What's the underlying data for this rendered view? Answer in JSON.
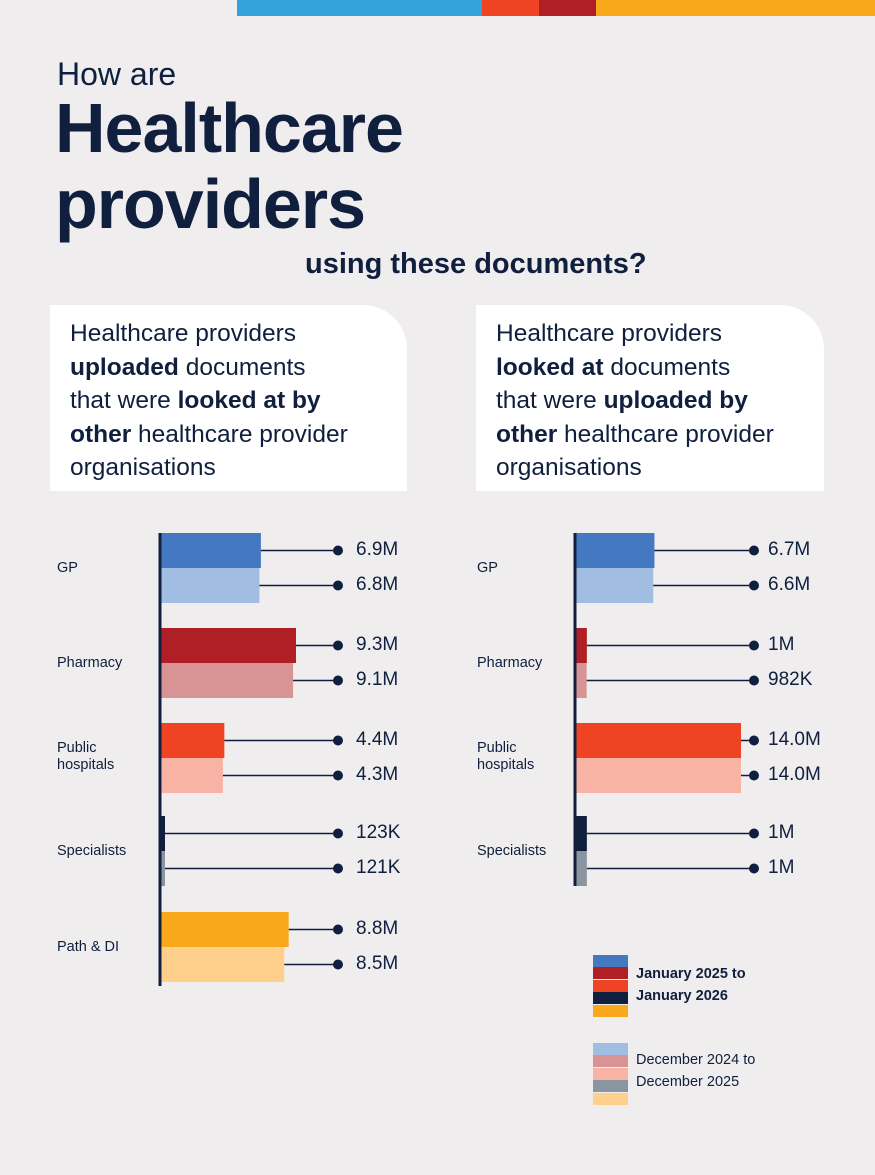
{
  "header": {
    "pre_title": "How are",
    "title_line1": "Healthcare",
    "title_line2": "providers",
    "subtitle": "using these documents?"
  },
  "colors": {
    "top_bar": [
      "#34a3dc",
      "#ee4424",
      "#b01f25",
      "#f9a71b"
    ],
    "background": "#efedee",
    "text": "#0f1f3d"
  },
  "cards": [
    {
      "line1": "Healthcare providers",
      "line2_bold": "uploaded",
      "line2_rest": " documents",
      "line3_plain": "that were ",
      "line3_bold": "looked at by",
      "line4_bold": "other",
      "line4_rest": " healthcare provider",
      "line5": "organisations"
    },
    {
      "line1": "Healthcare providers",
      "line2_bold": "looked at",
      "line2_rest": " documents",
      "line3_plain": "that were ",
      "line3_bold": "uploaded by",
      "line4_bold": "other",
      "line4_rest": " healthcare provider",
      "line5": "organisations"
    }
  ],
  "chart_data": [
    {
      "type": "bar",
      "orientation": "horizontal",
      "categories": [
        "GP",
        "Pharmacy",
        "Public hospitals",
        "Specialists",
        "Path & DI"
      ],
      "series": [
        {
          "name": "January 2025 to January 2026",
          "values": [
            6900000,
            9300000,
            4400000,
            123000,
            8800000
          ],
          "labels": [
            "6.9M",
            "9.3M",
            "4.4M",
            "123K",
            "8.8M"
          ],
          "colors": [
            "#4478c0",
            "#b01f25",
            "#ee4424",
            "#0f1f3d",
            "#f9a71b"
          ]
        },
        {
          "name": "December 2024 to December 2025",
          "values": [
            6800000,
            9100000,
            4300000,
            121000,
            8500000
          ],
          "labels": [
            "6.8M",
            "9.1M",
            "4.3M",
            "121K",
            "8.5M"
          ],
          "colors": [
            "#a2bde2",
            "#d89395",
            "#f9b3a5",
            "#8a95a0",
            "#fed08c"
          ]
        }
      ]
    },
    {
      "type": "bar",
      "orientation": "horizontal",
      "categories": [
        "GP",
        "Pharmacy",
        "Public hospitals",
        "Specialists"
      ],
      "series": [
        {
          "name": "January 2025 to January 2026",
          "values": [
            6700000,
            1000000,
            14000000,
            1000000
          ],
          "labels": [
            "6.7M",
            "1M",
            "14.0M",
            "1M"
          ],
          "colors": [
            "#4478c0",
            "#b01f25",
            "#ee4424",
            "#0f1f3d"
          ]
        },
        {
          "name": "December 2024 to December 2025",
          "values": [
            6600000,
            982000,
            14000000,
            1000000
          ],
          "labels": [
            "6.6M",
            "982K",
            "14.0M",
            "1M"
          ],
          "colors": [
            "#a2bde2",
            "#d89395",
            "#f9b3a5",
            "#8a95a0"
          ]
        }
      ]
    }
  ],
  "legend": {
    "current": {
      "line1": "January 2025 to",
      "line2": "January 2026",
      "colors": [
        "#4478c0",
        "#b01f25",
        "#ee4424",
        "#0f1f3d",
        "#f9a71b"
      ]
    },
    "previous": {
      "line1": "December 2024 to",
      "line2": "December 2025",
      "colors": [
        "#a2bde2",
        "#d89395",
        "#f9b3a5",
        "#8a95a0",
        "#fed08c"
      ]
    }
  }
}
